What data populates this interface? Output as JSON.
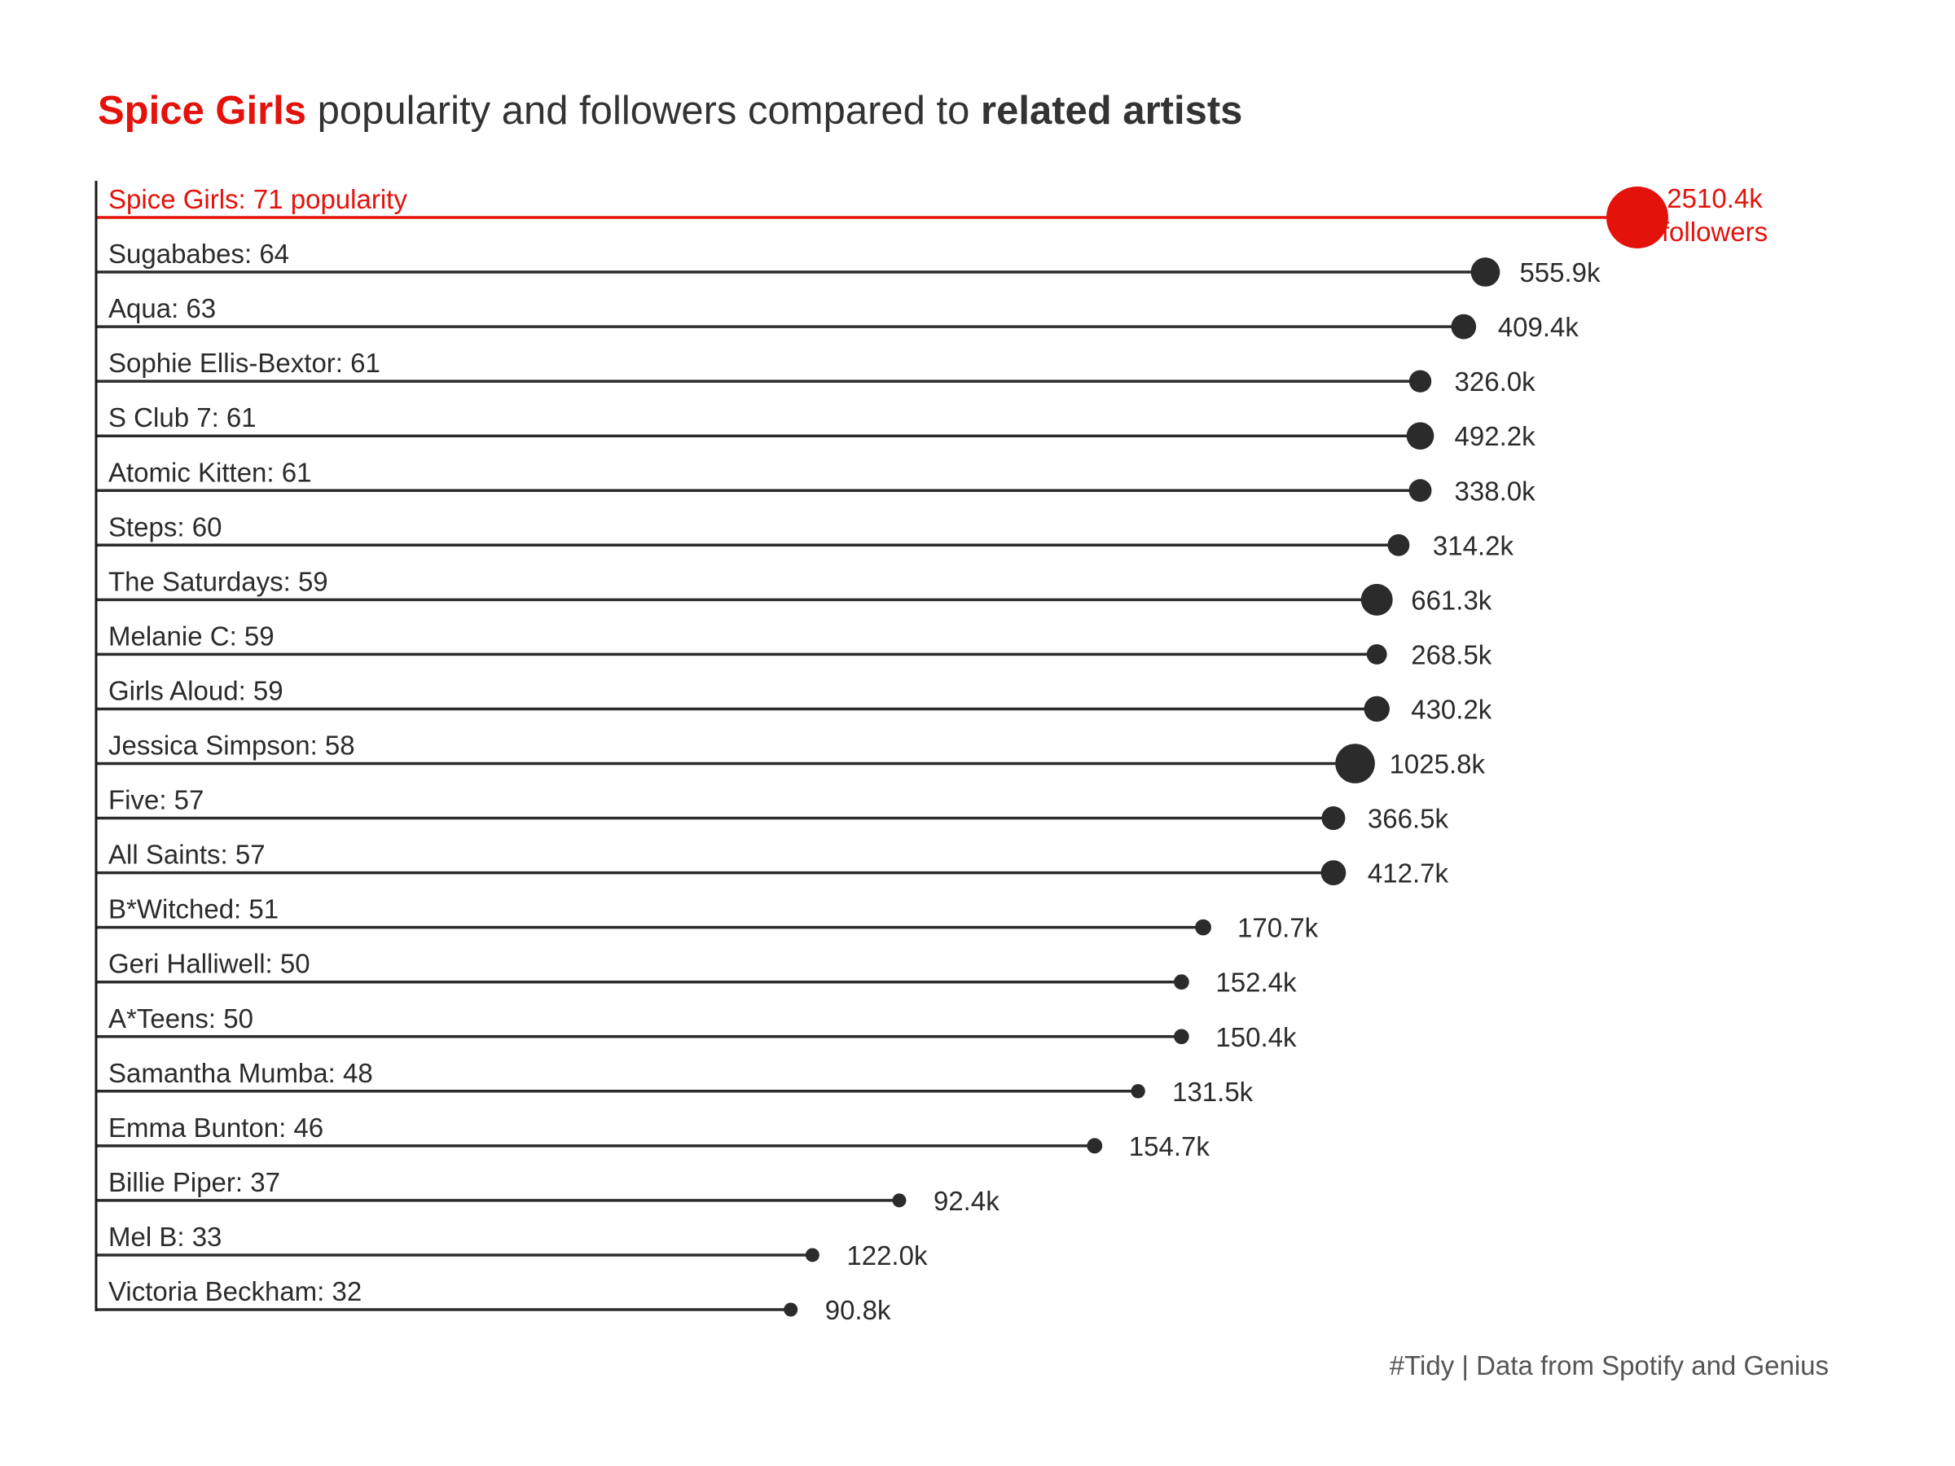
{
  "title": {
    "highlight": "Spice Girls",
    "middle": " popularity and followers compared to ",
    "emphasis": "related artists"
  },
  "caption": "#Tidy | Data from Spotify and Genius",
  "colors": {
    "highlight": "#e3120b",
    "default": "#2b2b2b",
    "axis": "#1a1a1a"
  },
  "chart_data": {
    "type": "lollipop",
    "x_measure": "popularity",
    "size_measure": "followers (k)",
    "xlim": [
      0,
      71
    ],
    "highlight_suffix": " popularity",
    "highlight_value_label": [
      "2510.4k",
      "followers"
    ],
    "rows": [
      {
        "artist": "Spice Girls",
        "popularity": 71,
        "followers_k": 2510.4,
        "label": "Spice Girls: 71",
        "value_label": "2510.4k",
        "highlight": true
      },
      {
        "artist": "Sugababes",
        "popularity": 64,
        "followers_k": 555.9,
        "label": "Sugababes: 64",
        "value_label": "555.9k"
      },
      {
        "artist": "Aqua",
        "popularity": 63,
        "followers_k": 409.4,
        "label": "Aqua: 63",
        "value_label": "409.4k"
      },
      {
        "artist": "Sophie Ellis-Bextor",
        "popularity": 61,
        "followers_k": 326.0,
        "label": "Sophie Ellis-Bextor: 61",
        "value_label": "326.0k"
      },
      {
        "artist": "S Club 7",
        "popularity": 61,
        "followers_k": 492.2,
        "label": "S Club 7: 61",
        "value_label": "492.2k"
      },
      {
        "artist": "Atomic Kitten",
        "popularity": 61,
        "followers_k": 338.0,
        "label": "Atomic Kitten: 61",
        "value_label": "338.0k"
      },
      {
        "artist": "Steps",
        "popularity": 60,
        "followers_k": 314.2,
        "label": "Steps: 60",
        "value_label": "314.2k"
      },
      {
        "artist": "The Saturdays",
        "popularity": 59,
        "followers_k": 661.3,
        "label": "The Saturdays: 59",
        "value_label": "661.3k"
      },
      {
        "artist": "Melanie C",
        "popularity": 59,
        "followers_k": 268.5,
        "label": "Melanie C: 59",
        "value_label": "268.5k"
      },
      {
        "artist": "Girls Aloud",
        "popularity": 59,
        "followers_k": 430.2,
        "label": "Girls Aloud: 59",
        "value_label": "430.2k"
      },
      {
        "artist": "Jessica Simpson",
        "popularity": 58,
        "followers_k": 1025.8,
        "label": "Jessica Simpson: 58",
        "value_label": "1025.8k"
      },
      {
        "artist": "Five",
        "popularity": 57,
        "followers_k": 366.5,
        "label": "Five: 57",
        "value_label": "366.5k"
      },
      {
        "artist": "All Saints",
        "popularity": 57,
        "followers_k": 412.7,
        "label": "All Saints: 57",
        "value_label": "412.7k"
      },
      {
        "artist": "B*Witched",
        "popularity": 51,
        "followers_k": 170.7,
        "label": "B*Witched: 51",
        "value_label": "170.7k"
      },
      {
        "artist": "Geri Halliwell",
        "popularity": 50,
        "followers_k": 152.4,
        "label": "Geri Halliwell: 50",
        "value_label": "152.4k"
      },
      {
        "artist": "A*Teens",
        "popularity": 50,
        "followers_k": 150.4,
        "label": "A*Teens: 50",
        "value_label": "150.4k"
      },
      {
        "artist": "Samantha Mumba",
        "popularity": 48,
        "followers_k": 131.5,
        "label": "Samantha Mumba: 48",
        "value_label": "131.5k"
      },
      {
        "artist": "Emma Bunton",
        "popularity": 46,
        "followers_k": 154.7,
        "label": "Emma Bunton: 46",
        "value_label": "154.7k"
      },
      {
        "artist": "Billie Piper",
        "popularity": 37,
        "followers_k": 92.4,
        "label": "Billie Piper: 37",
        "value_label": "92.4k"
      },
      {
        "artist": "Mel B",
        "popularity": 33,
        "followers_k": 122.0,
        "label": "Mel B: 33",
        "value_label": "122.0k"
      },
      {
        "artist": "Victoria Beckham",
        "popularity": 32,
        "followers_k": 90.8,
        "label": "Victoria Beckham: 32",
        "value_label": "90.8k"
      }
    ]
  }
}
